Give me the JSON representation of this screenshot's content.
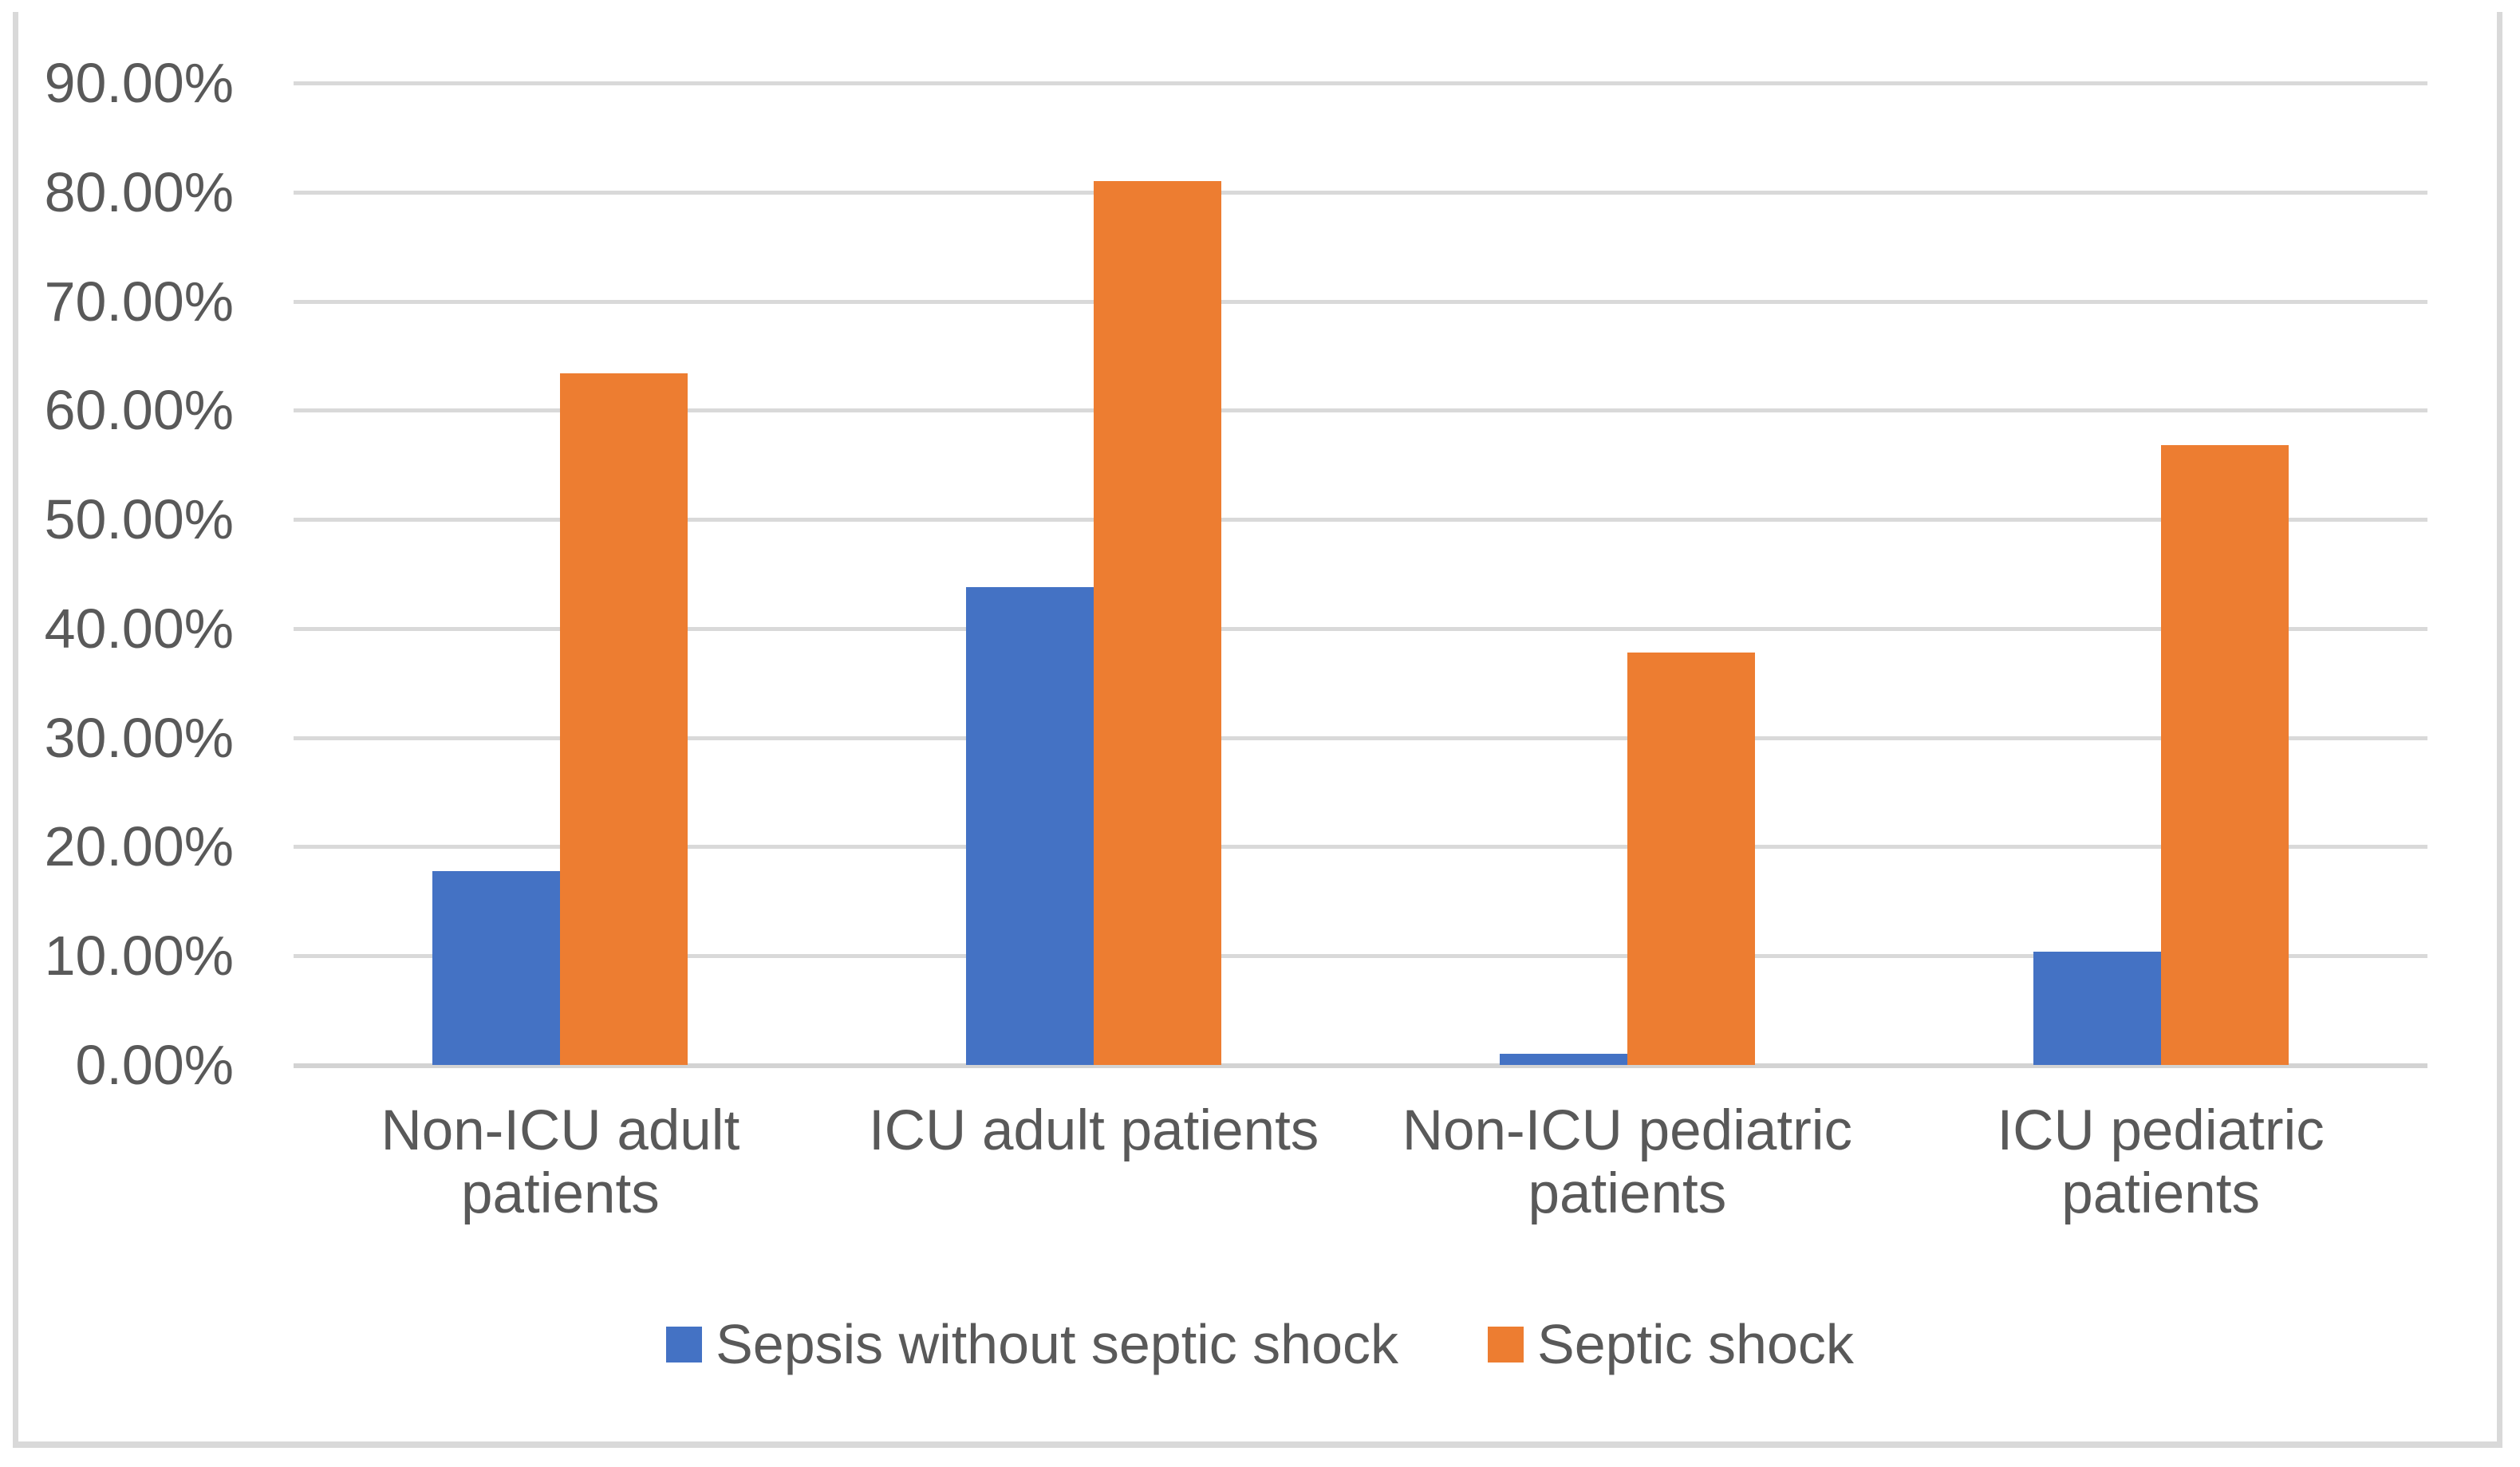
{
  "figure": {
    "background_color": "#ffffff",
    "frame_border_color": "#d9d9d9",
    "gridline_color": "#d9d9d9",
    "axis_line_color": "#d3d3d3",
    "text_color": "#595959"
  },
  "chart_data": {
    "type": "bar",
    "title": "",
    "xlabel": "",
    "ylabel": "",
    "categories": [
      "Non-ICU adult\npatients",
      "ICU adult patients",
      "Non-ICU pediatric\npatients",
      "ICU pediatric patients"
    ],
    "series": [
      {
        "name": "Sepsis without septic shock",
        "color": "#4472c4",
        "values": [
          17.8,
          43.8,
          1.0,
          10.4
        ]
      },
      {
        "name": "Septic shock",
        "color": "#ed7d31",
        "values": [
          63.4,
          81.0,
          37.8,
          56.8
        ]
      }
    ],
    "value_unit": "%",
    "ylim": [
      0,
      90
    ],
    "ytick_step": 10,
    "yticks_top_to_bottom": [
      "90.00%",
      "80.00%",
      "70.00%",
      "60.00%",
      "50.00%",
      "40.00%",
      "30.00%",
      "20.00%",
      "10.00%",
      "0.00%"
    ],
    "grid": true,
    "legend_position": "bottom"
  }
}
